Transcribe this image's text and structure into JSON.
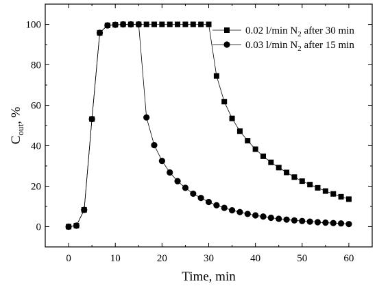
{
  "chart_data": {
    "type": "line",
    "xlabel": "Time, min",
    "ylabel": {
      "main": "C",
      "sub": "out",
      "suffix": ", %"
    },
    "xlim": [
      -5,
      65
    ],
    "ylim": [
      -10,
      110
    ],
    "xticks": [
      0,
      10,
      20,
      30,
      40,
      50,
      60
    ],
    "yticks": [
      0,
      20,
      40,
      60,
      80,
      100
    ],
    "grid": false,
    "legend_position": "top-right",
    "series": [
      {
        "legend": {
          "pre": "0.02 l/min N",
          "sub": "2",
          "post": " after 30 min"
        },
        "marker": "square",
        "color": "#000000",
        "x": [
          0,
          1.67,
          3.33,
          5,
          6.67,
          8.33,
          10,
          11.67,
          13.33,
          15,
          16.67,
          18.33,
          20,
          21.67,
          23.33,
          25,
          26.67,
          28.33,
          30,
          31.67,
          33.33,
          35,
          36.67,
          38.33,
          40,
          41.67,
          43.33,
          45,
          46.67,
          48.33,
          50,
          51.67,
          53.33,
          55,
          56.67,
          58.33,
          60
        ],
        "y": [
          0,
          0.5,
          8.3,
          53.2,
          95.8,
          99.5,
          99.8,
          100,
          100,
          100,
          100,
          100,
          100,
          100,
          100,
          100,
          100,
          100,
          100,
          74.5,
          61.8,
          53.5,
          47.2,
          42.5,
          38.3,
          34.8,
          31.8,
          29.2,
          26.8,
          24.5,
          22.5,
          20.8,
          19.2,
          17.6,
          16.2,
          14.8,
          13.6
        ]
      },
      {
        "legend": {
          "pre": "0.03 l/min N",
          "sub": "2",
          "post": " after 15 min"
        },
        "marker": "circle",
        "color": "#000000",
        "x": [
          0,
          1.67,
          3.33,
          5,
          6.67,
          8.33,
          10,
          11.67,
          13.33,
          15,
          16.67,
          18.33,
          20,
          21.67,
          23.33,
          25,
          26.67,
          28.33,
          30,
          31.67,
          33.33,
          35,
          36.67,
          38.33,
          40,
          41.67,
          43.33,
          45,
          46.67,
          48.33,
          50,
          51.67,
          53.33,
          55,
          56.67,
          58.33,
          60
        ],
        "y": [
          0,
          0.5,
          8.3,
          53.2,
          95.8,
          99.5,
          99.8,
          100,
          100,
          100,
          54,
          40.3,
          32.5,
          26.8,
          22.5,
          19.2,
          16.3,
          14.2,
          12.2,
          10.6,
          9.3,
          8.1,
          7.2,
          6.3,
          5.6,
          5,
          4.4,
          3.9,
          3.5,
          3.1,
          2.8,
          2.5,
          2.2,
          2,
          1.8,
          1.6,
          1.3
        ]
      }
    ]
  }
}
